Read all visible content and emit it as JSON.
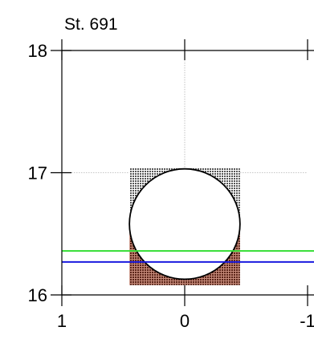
{
  "chart_data": {
    "type": "scatter",
    "title": "St. 691",
    "xlabel": "",
    "ylabel": "",
    "xlim": [
      1,
      -1
    ],
    "ylim": [
      16,
      18
    ],
    "x_ticks": [
      {
        "value": 1,
        "label": "1"
      },
      {
        "value": 0,
        "label": "0"
      },
      {
        "value": -1,
        "label": "-1"
      }
    ],
    "y_ticks": [
      {
        "value": 16,
        "label": "16"
      },
      {
        "value": 17,
        "label": "17"
      },
      {
        "value": 18,
        "label": "18"
      }
    ],
    "grid": true,
    "box": {
      "x_range": [
        0.45,
        -0.45
      ],
      "y_range": [
        16.08,
        17.04
      ],
      "split_y": 16.58,
      "upper_color": "#6e6e6e",
      "lower_color": "#7a3a2c"
    },
    "circle": {
      "center_x": 0,
      "center_y": 16.58,
      "radius_x": 0.45
    },
    "lines": [
      {
        "y": 16.36,
        "color": "#33dd33"
      },
      {
        "y": 16.27,
        "color": "#1a1adf"
      }
    ],
    "colors": {
      "axis": "#000000",
      "grid": "#b4b4b4"
    }
  }
}
